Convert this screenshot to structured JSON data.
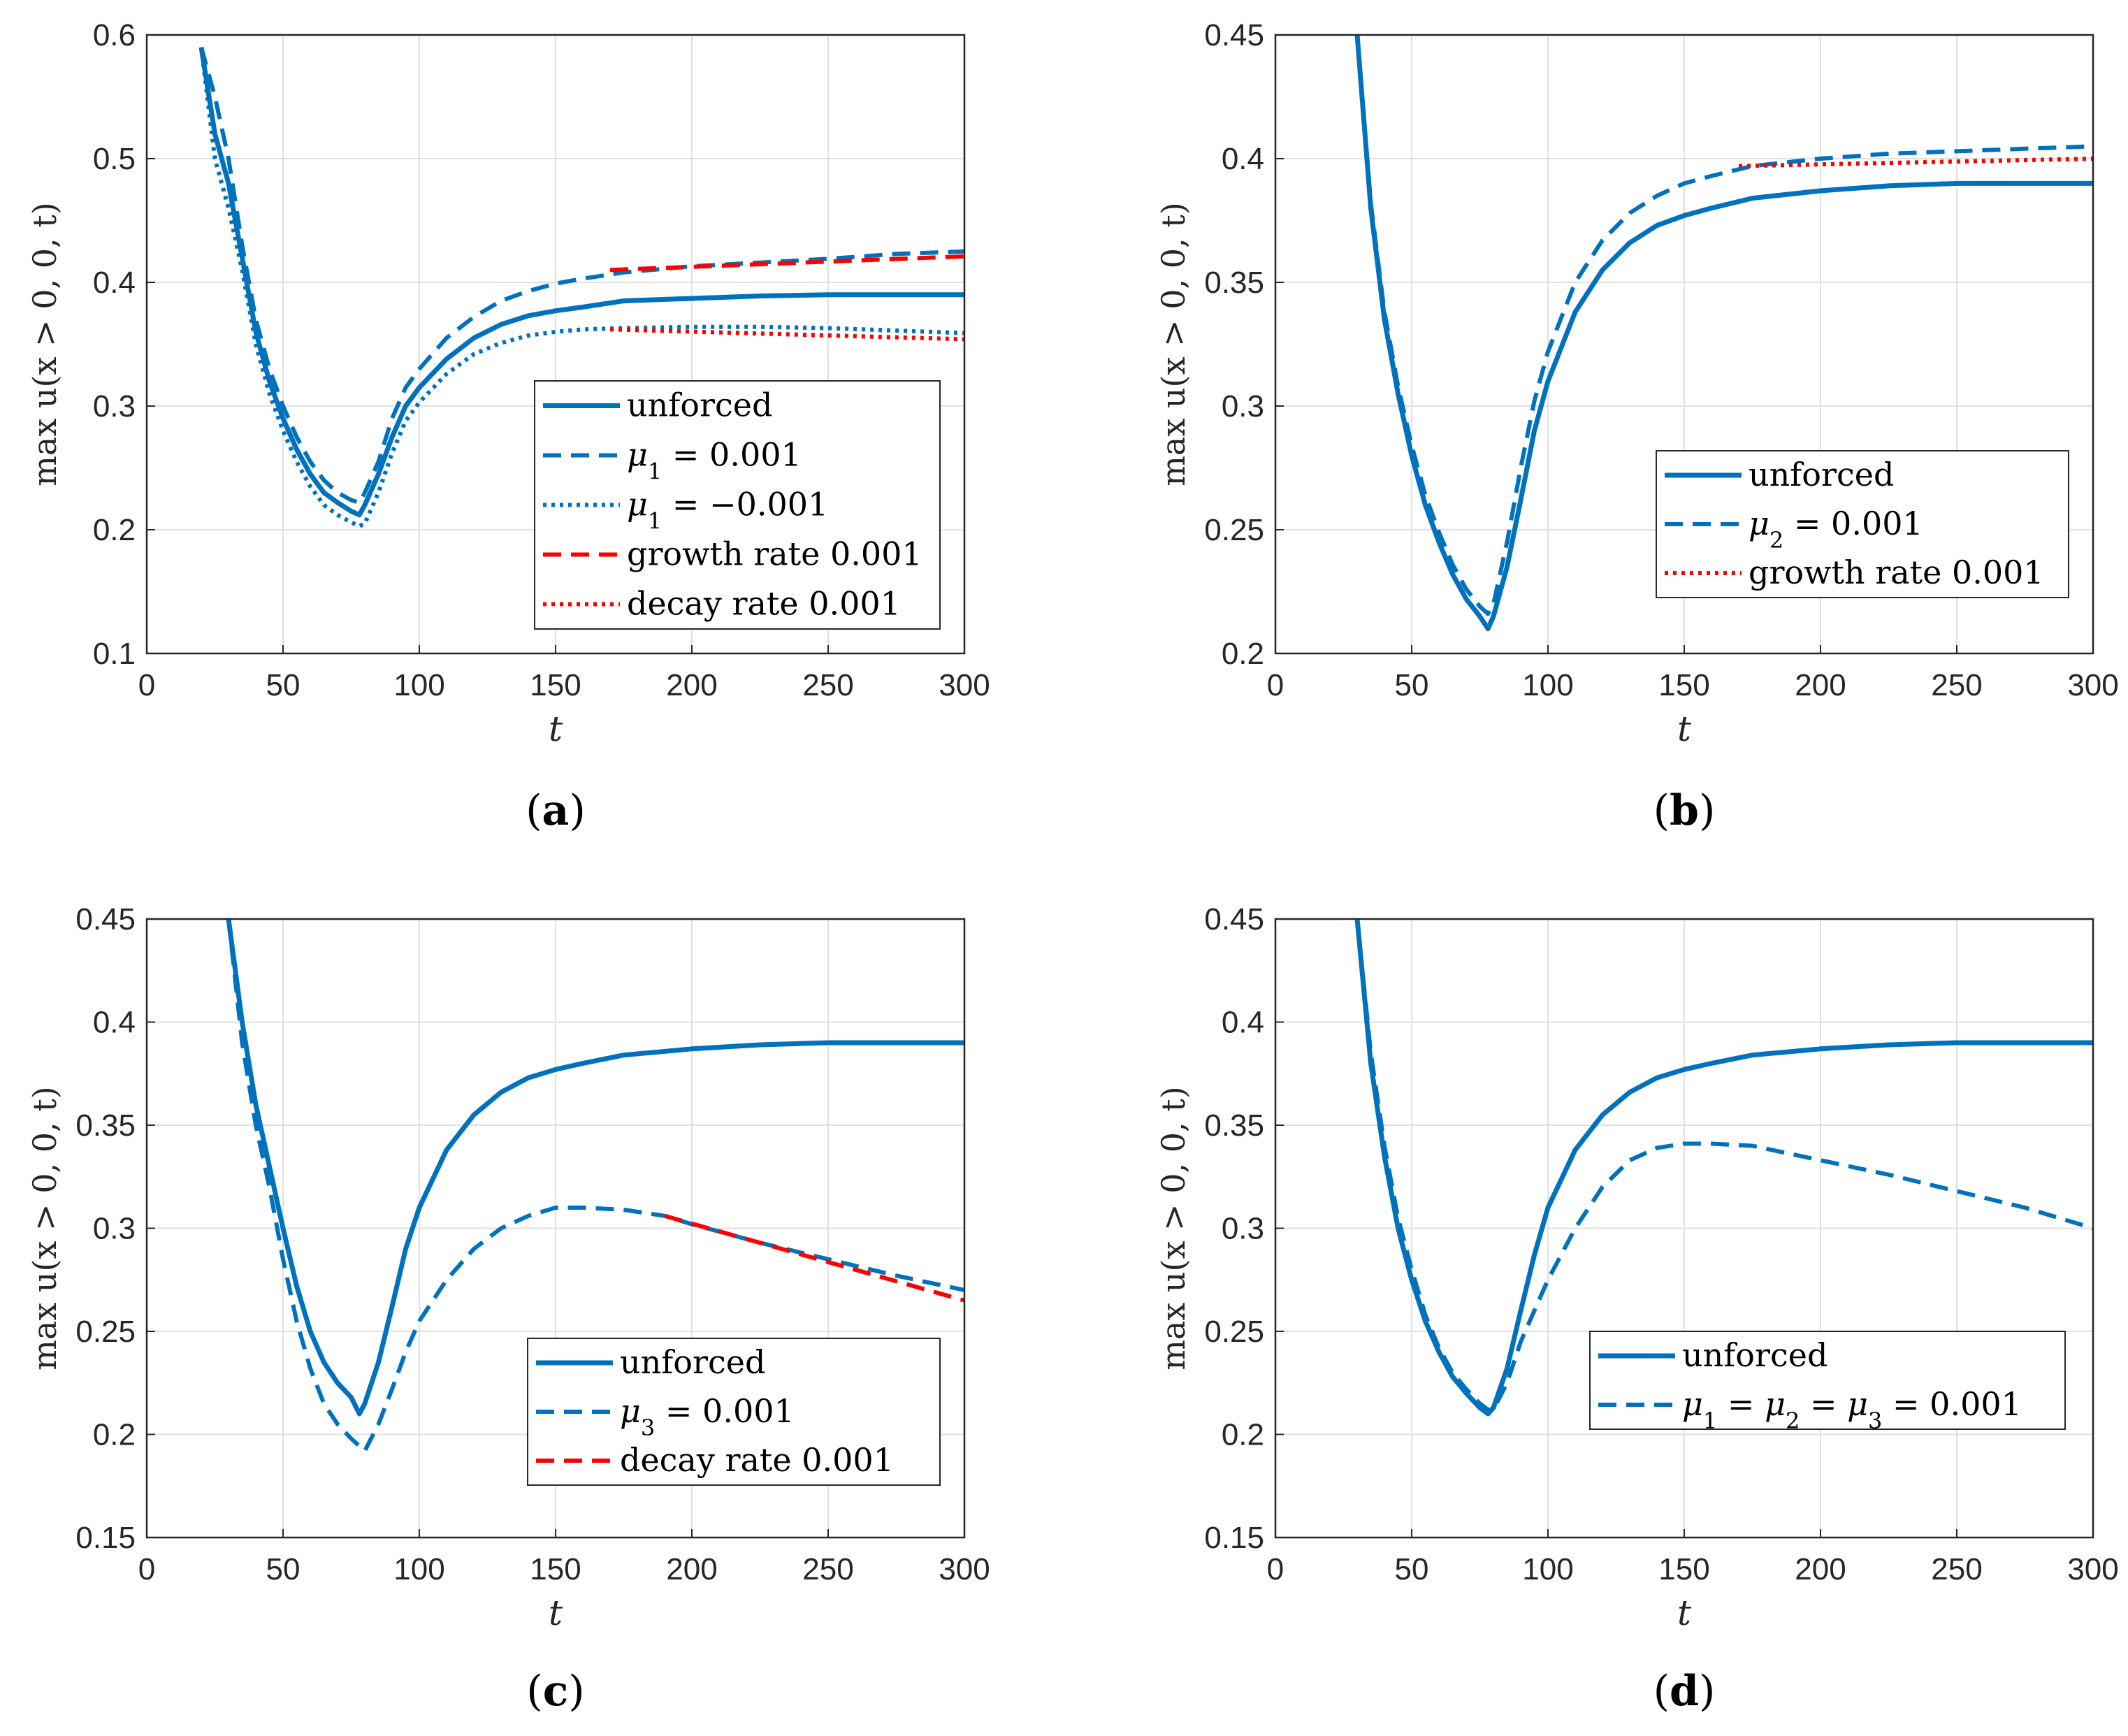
{
  "colors": {
    "series_blue": "#0072BD",
    "fit_red": "#FF0000",
    "grid": "#E0E0E0",
    "axis": "#262626"
  },
  "chart_data": [
    {
      "type": "line",
      "caption_letter": "a",
      "xlabel": "t",
      "ylabel": "max u(x > 0, 0, t)",
      "xlim": [
        0,
        300
      ],
      "ylim": [
        0.1,
        0.6
      ],
      "xticks": [
        "0",
        "50",
        "100",
        "150",
        "200",
        "250",
        "300"
      ],
      "yticks": [
        "0.1",
        "0.2",
        "0.3",
        "0.4",
        "0.5",
        "0.6"
      ],
      "grid": true,
      "legend_position": "lower-right",
      "series": [
        {
          "name": "unforced",
          "style": "solid",
          "color": "blue",
          "x": [
            20,
            25,
            30,
            35,
            40,
            45,
            50,
            55,
            60,
            65,
            70,
            75,
            78,
            80,
            85,
            90,
            95,
            100,
            110,
            120,
            130,
            140,
            150,
            160,
            175,
            200,
            225,
            250,
            275,
            300
          ],
          "y": [
            0.59,
            0.52,
            0.48,
            0.42,
            0.36,
            0.32,
            0.29,
            0.265,
            0.245,
            0.23,
            0.222,
            0.215,
            0.212,
            0.22,
            0.245,
            0.275,
            0.3,
            0.315,
            0.338,
            0.355,
            0.366,
            0.373,
            0.377,
            0.38,
            0.385,
            0.387,
            0.389,
            0.39,
            0.39,
            0.39
          ]
        },
        {
          "name": "μ1 = 0.001",
          "style": "dashed",
          "color": "blue",
          "x": [
            20,
            25,
            30,
            35,
            40,
            45,
            50,
            55,
            60,
            65,
            70,
            75,
            78,
            80,
            85,
            90,
            95,
            100,
            110,
            120,
            130,
            140,
            150,
            160,
            175,
            200,
            225,
            250,
            275,
            300
          ],
          "y": [
            0.59,
            0.55,
            0.5,
            0.43,
            0.37,
            0.33,
            0.3,
            0.275,
            0.255,
            0.24,
            0.23,
            0.224,
            0.222,
            0.23,
            0.255,
            0.29,
            0.315,
            0.33,
            0.355,
            0.372,
            0.385,
            0.393,
            0.399,
            0.403,
            0.408,
            0.413,
            0.416,
            0.419,
            0.423,
            0.425
          ]
        },
        {
          "name": "μ1 = −0.001",
          "style": "dotted",
          "color": "blue",
          "x": [
            20,
            25,
            30,
            35,
            40,
            45,
            50,
            55,
            60,
            65,
            70,
            75,
            78,
            80,
            85,
            90,
            95,
            100,
            110,
            120,
            130,
            140,
            150,
            160,
            175,
            200,
            225,
            250,
            275,
            300
          ],
          "y": [
            0.59,
            0.5,
            0.46,
            0.41,
            0.35,
            0.31,
            0.28,
            0.255,
            0.235,
            0.22,
            0.212,
            0.206,
            0.203,
            0.205,
            0.23,
            0.262,
            0.288,
            0.303,
            0.326,
            0.342,
            0.351,
            0.357,
            0.36,
            0.362,
            0.363,
            0.364,
            0.364,
            0.363,
            0.361,
            0.359
          ]
        },
        {
          "name": "growth rate 0.001",
          "style": "dashed",
          "color": "red",
          "x": [
            170,
            300
          ],
          "y": [
            0.41,
            0.421
          ]
        },
        {
          "name": "decay rate 0.001",
          "style": "dotted",
          "color": "red",
          "x": [
            170,
            300
          ],
          "y": [
            0.362,
            0.354
          ]
        }
      ]
    },
    {
      "type": "line",
      "caption_letter": "b",
      "xlabel": "t",
      "ylabel": "max u(x > 0, 0, t)",
      "xlim": [
        0,
        300
      ],
      "ylim": [
        0.2,
        0.45
      ],
      "xticks": [
        "0",
        "50",
        "100",
        "150",
        "200",
        "250",
        "300"
      ],
      "yticks": [
        "0.2",
        "0.25",
        "0.3",
        "0.35",
        "0.4",
        "0.45"
      ],
      "grid": true,
      "legend_position": "lower-right",
      "series": [
        {
          "name": "unforced",
          "style": "solid",
          "color": "blue",
          "x": [
            30,
            35,
            40,
            45,
            50,
            55,
            60,
            65,
            70,
            75,
            78,
            80,
            85,
            90,
            95,
            100,
            110,
            120,
            130,
            140,
            150,
            160,
            175,
            200,
            225,
            250,
            275,
            300
          ],
          "y": [
            0.45,
            0.38,
            0.335,
            0.305,
            0.28,
            0.26,
            0.245,
            0.232,
            0.222,
            0.215,
            0.21,
            0.215,
            0.235,
            0.262,
            0.29,
            0.31,
            0.338,
            0.355,
            0.366,
            0.373,
            0.377,
            0.38,
            0.384,
            0.387,
            0.389,
            0.39,
            0.39,
            0.39
          ]
        },
        {
          "name": "μ2 = 0.001",
          "style": "dashed",
          "color": "blue",
          "x": [
            30,
            35,
            40,
            45,
            50,
            55,
            60,
            65,
            70,
            75,
            78,
            80,
            85,
            90,
            95,
            100,
            110,
            120,
            130,
            140,
            150,
            160,
            175,
            200,
            225,
            250,
            275,
            300
          ],
          "y": [
            0.45,
            0.382,
            0.338,
            0.308,
            0.284,
            0.264,
            0.249,
            0.236,
            0.226,
            0.219,
            0.216,
            0.22,
            0.245,
            0.275,
            0.302,
            0.322,
            0.35,
            0.367,
            0.378,
            0.385,
            0.39,
            0.393,
            0.397,
            0.4,
            0.402,
            0.403,
            0.404,
            0.405
          ]
        },
        {
          "name": "growth rate 0.001",
          "style": "dotted",
          "color": "red",
          "x": [
            170,
            300
          ],
          "y": [
            0.397,
            0.4
          ]
        }
      ]
    },
    {
      "type": "line",
      "caption_letter": "c",
      "xlabel": "t",
      "ylabel": "max u(x > 0, 0, t)",
      "xlim": [
        0,
        300
      ],
      "ylim": [
        0.15,
        0.45
      ],
      "xticks": [
        "0",
        "50",
        "100",
        "150",
        "200",
        "250",
        "300"
      ],
      "yticks": [
        "0.15",
        "0.2",
        "0.25",
        "0.3",
        "0.35",
        "0.4",
        "0.45"
      ],
      "grid": true,
      "legend_position": "lower-right",
      "series": [
        {
          "name": "unforced",
          "style": "solid",
          "color": "blue",
          "x": [
            30,
            35,
            40,
            45,
            50,
            55,
            60,
            65,
            70,
            75,
            78,
            80,
            85,
            90,
            95,
            100,
            110,
            120,
            130,
            140,
            150,
            160,
            175,
            200,
            225,
            250,
            275,
            300
          ],
          "y": [
            0.45,
            0.4,
            0.36,
            0.33,
            0.3,
            0.272,
            0.25,
            0.235,
            0.225,
            0.218,
            0.21,
            0.215,
            0.235,
            0.262,
            0.29,
            0.31,
            0.338,
            0.355,
            0.366,
            0.373,
            0.377,
            0.38,
            0.384,
            0.387,
            0.389,
            0.39,
            0.39,
            0.39
          ]
        },
        {
          "name": "μ3 = 0.001",
          "style": "dashed",
          "color": "blue",
          "x": [
            30,
            35,
            40,
            45,
            50,
            55,
            60,
            65,
            70,
            75,
            80,
            85,
            90,
            95,
            100,
            110,
            120,
            130,
            140,
            150,
            160,
            175,
            190,
            200,
            225,
            250,
            275,
            300
          ],
          "y": [
            0.45,
            0.39,
            0.35,
            0.32,
            0.285,
            0.255,
            0.232,
            0.215,
            0.205,
            0.198,
            0.192,
            0.205,
            0.222,
            0.24,
            0.255,
            0.275,
            0.29,
            0.3,
            0.306,
            0.31,
            0.31,
            0.309,
            0.306,
            0.302,
            0.293,
            0.285,
            0.277,
            0.27
          ]
        },
        {
          "name": "decay rate 0.001",
          "style": "dashed",
          "color": "red",
          "x": [
            190,
            300
          ],
          "y": [
            0.306,
            0.265
          ]
        }
      ]
    },
    {
      "type": "line",
      "caption_letter": "d",
      "xlabel": "t",
      "ylabel": "max u(x > 0, 0, t)",
      "xlim": [
        0,
        300
      ],
      "ylim": [
        0.15,
        0.45
      ],
      "xticks": [
        "0",
        "50",
        "100",
        "150",
        "200",
        "250",
        "300"
      ],
      "yticks": [
        "0.15",
        "0.2",
        "0.25",
        "0.3",
        "0.35",
        "0.4",
        "0.45"
      ],
      "grid": true,
      "legend_position": "lower-right",
      "series": [
        {
          "name": "unforced",
          "style": "solid",
          "color": "blue",
          "x": [
            30,
            35,
            40,
            45,
            50,
            55,
            60,
            65,
            70,
            75,
            78,
            80,
            85,
            90,
            95,
            100,
            110,
            120,
            130,
            140,
            150,
            160,
            175,
            200,
            225,
            250,
            275,
            300
          ],
          "y": [
            0.45,
            0.38,
            0.335,
            0.3,
            0.275,
            0.255,
            0.24,
            0.228,
            0.22,
            0.213,
            0.21,
            0.213,
            0.232,
            0.26,
            0.287,
            0.31,
            0.338,
            0.355,
            0.366,
            0.373,
            0.377,
            0.38,
            0.384,
            0.387,
            0.389,
            0.39,
            0.39,
            0.39
          ]
        },
        {
          "name": "μ1 = μ2 = μ3 = 0.001",
          "style": "dashed",
          "color": "blue",
          "x": [
            30,
            35,
            40,
            45,
            50,
            55,
            60,
            65,
            70,
            75,
            78,
            80,
            85,
            90,
            95,
            100,
            110,
            120,
            130,
            140,
            150,
            160,
            175,
            200,
            225,
            250,
            275,
            300
          ],
          "y": [
            0.45,
            0.385,
            0.34,
            0.305,
            0.28,
            0.258,
            0.242,
            0.23,
            0.222,
            0.215,
            0.212,
            0.212,
            0.225,
            0.245,
            0.26,
            0.275,
            0.3,
            0.32,
            0.333,
            0.339,
            0.341,
            0.341,
            0.34,
            0.333,
            0.326,
            0.318,
            0.31,
            0.3
          ]
        }
      ]
    }
  ]
}
